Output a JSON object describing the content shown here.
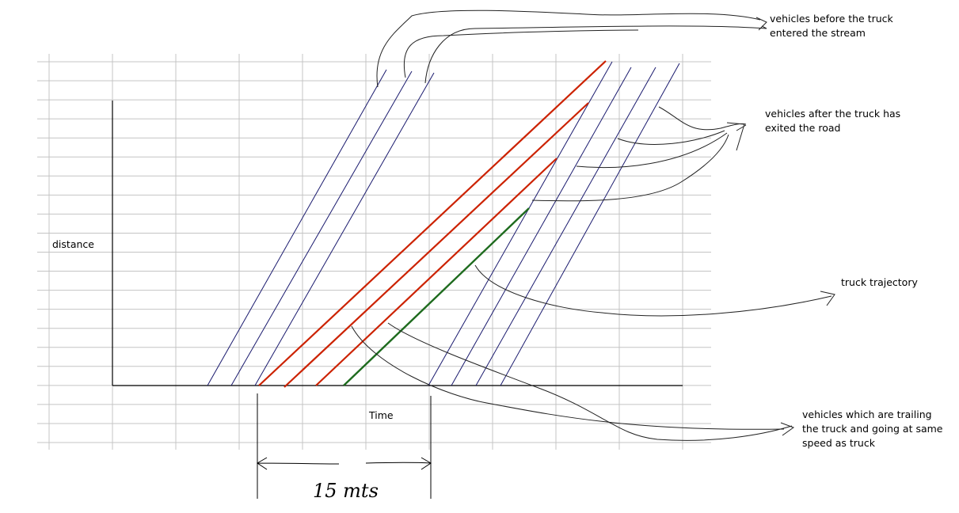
{
  "axes": {
    "y_label": "distance",
    "x_label": "Time"
  },
  "annotations": [
    {
      "lines": [
        "vehicles before the truck",
        "entered the stream"
      ]
    },
    {
      "lines": [
        "vehicles after the truck has",
        "exited the road"
      ]
    },
    {
      "lines": [
        "truck trajectory"
      ]
    },
    {
      "lines": [
        "vehicles which are trailing",
        "the truck and going at same",
        "speed as truck"
      ]
    }
  ],
  "duration_label": "15 mts"
}
